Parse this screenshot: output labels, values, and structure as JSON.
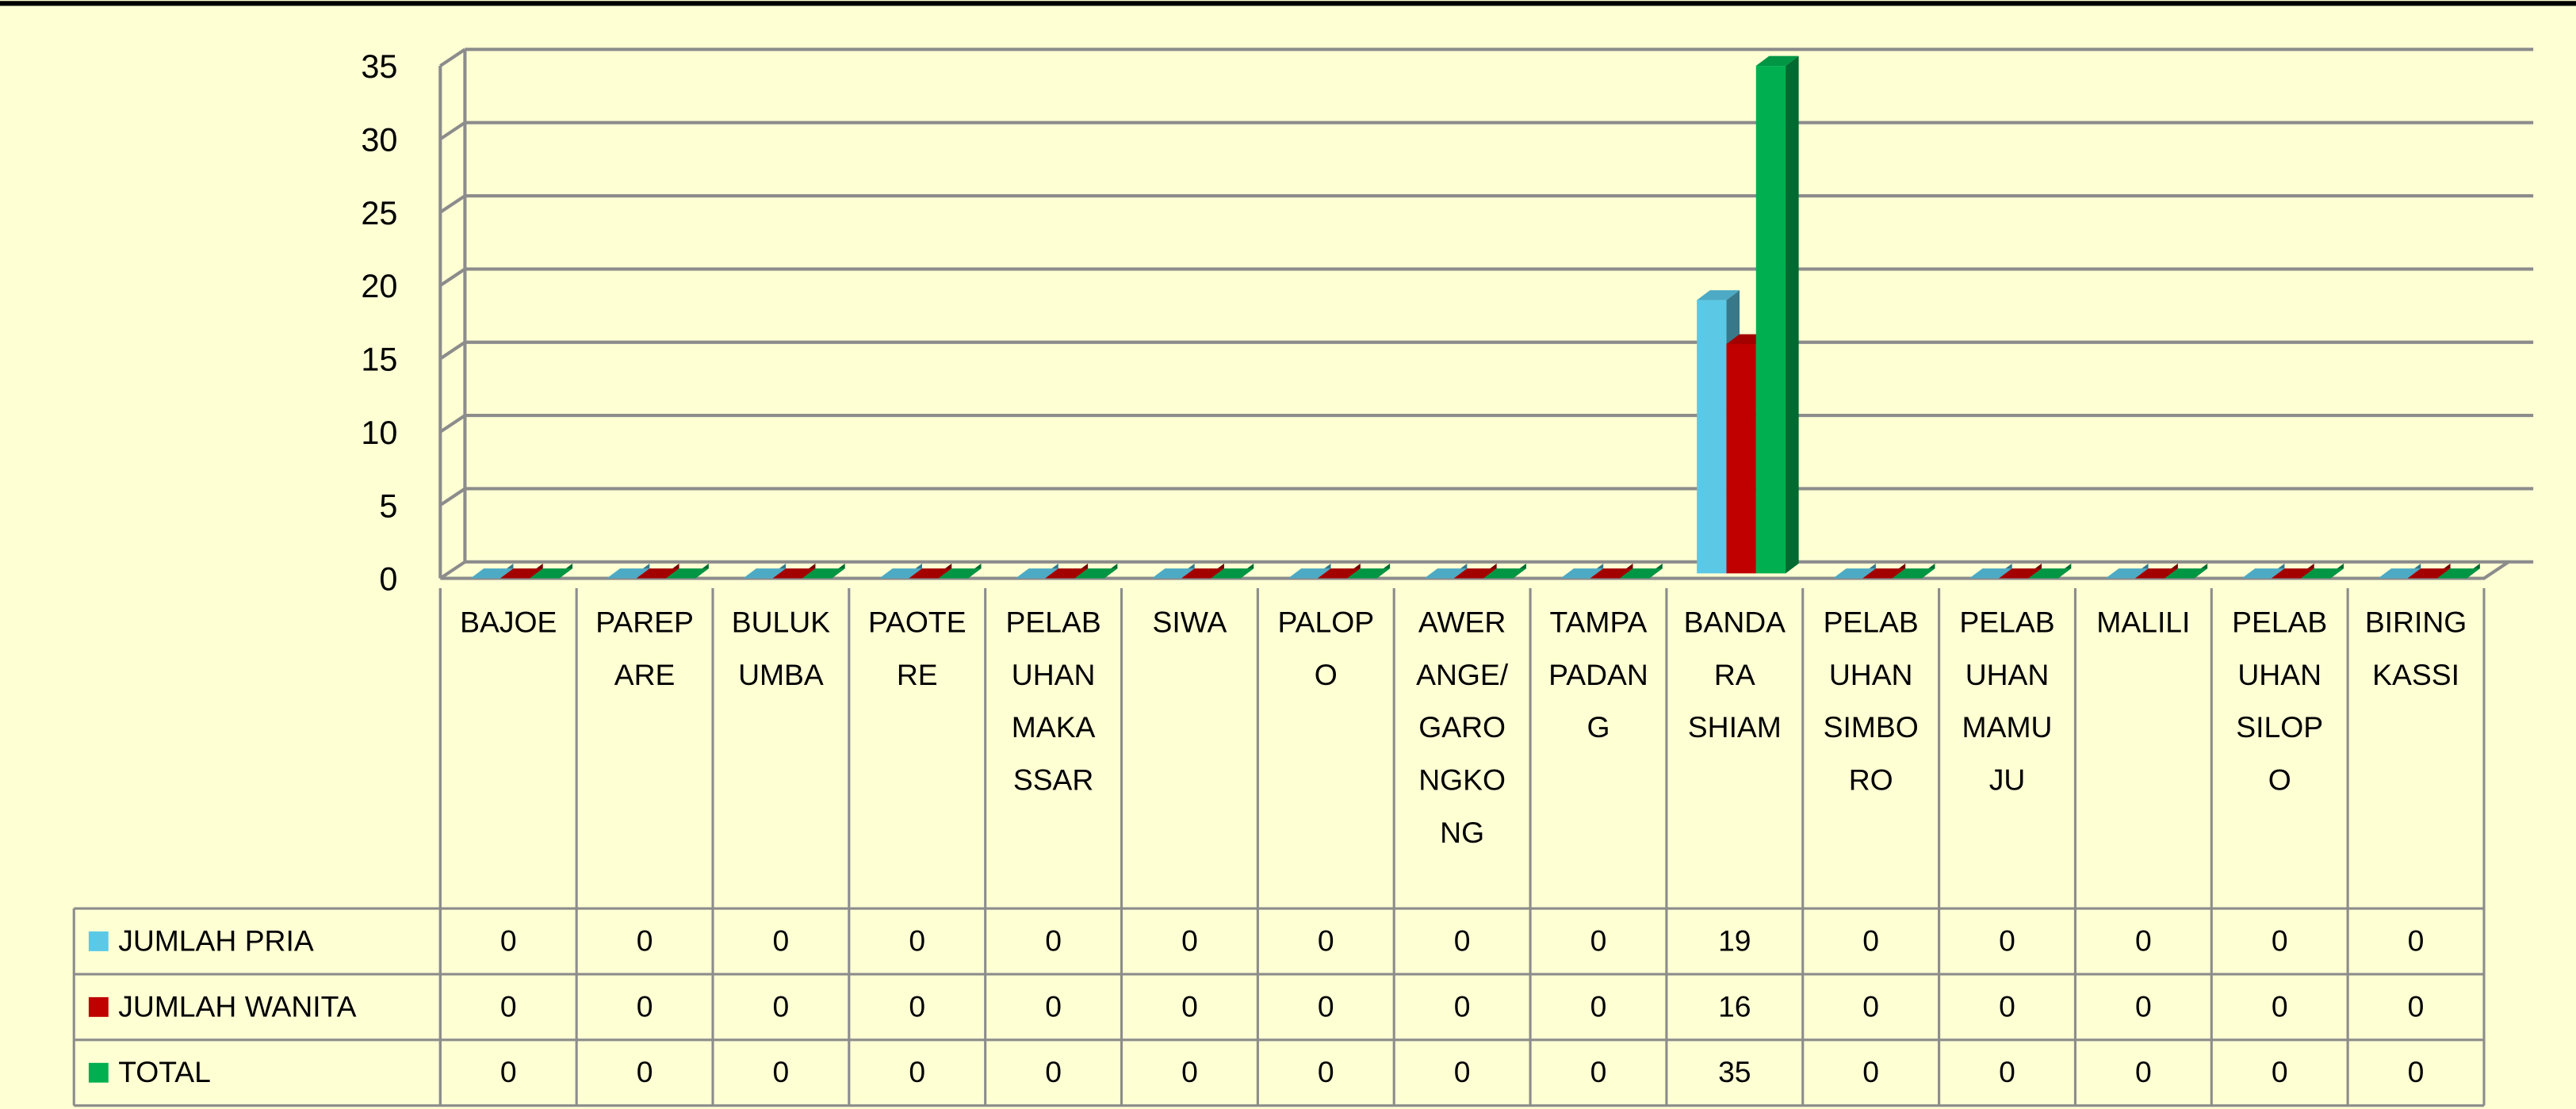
{
  "chart_data": {
    "type": "bar3d",
    "categories": [
      "BAJOE",
      "PAREPARE",
      "BULUKUMBA",
      "PAOTERE",
      "PELABUHAN MAKASSAR",
      "SIWA",
      "PALOPO",
      "AWERANGE/GARONGKONG",
      "TAMPAPADANG",
      "BANDARA SHIAM",
      "PELABUHAN SIMBORO",
      "PELABUHAN MAMUJU",
      "MALILI",
      "PELABUHAN SILOPO",
      "BIRINGKASSI"
    ],
    "series": [
      {
        "name": "JUMLAH PRIA",
        "color": "#5bc8e6",
        "values": [
          0,
          0,
          0,
          0,
          0,
          0,
          0,
          0,
          0,
          19,
          0,
          0,
          0,
          0,
          0
        ]
      },
      {
        "name": "JUMLAH WANITA",
        "color": "#c00000",
        "values": [
          0,
          0,
          0,
          0,
          0,
          0,
          0,
          0,
          0,
          16,
          0,
          0,
          0,
          0,
          0
        ]
      },
      {
        "name": "TOTAL",
        "color": "#00b050",
        "values": [
          0,
          0,
          0,
          0,
          0,
          0,
          0,
          0,
          0,
          35,
          0,
          0,
          0,
          0,
          0
        ]
      }
    ],
    "ylim": [
      0,
      35
    ],
    "yticks": [
      0,
      5,
      10,
      15,
      20,
      25,
      30,
      35
    ],
    "grid": true
  }
}
